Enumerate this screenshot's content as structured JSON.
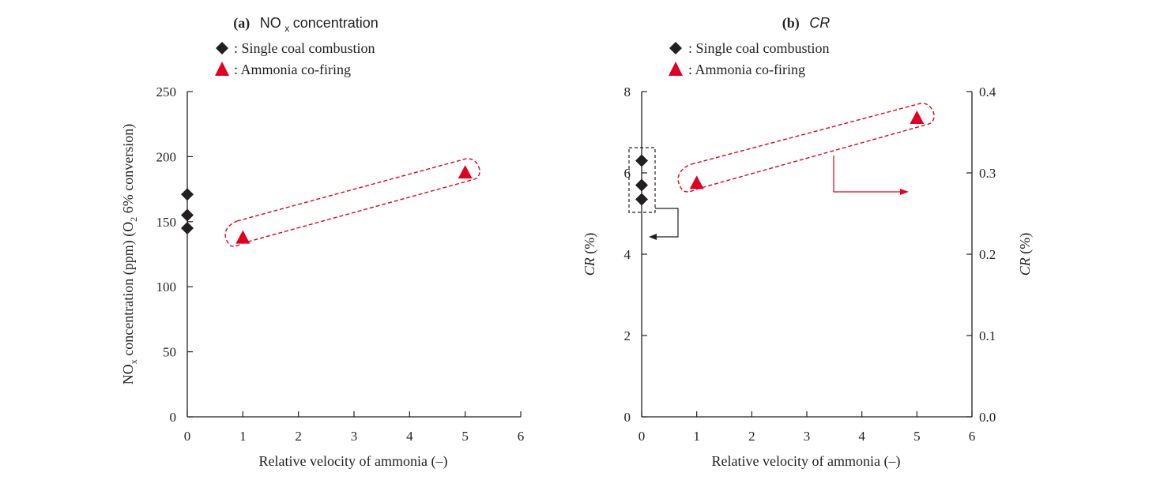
{
  "chart_data": [
    {
      "type": "scatter",
      "panel_label": "(a)",
      "title_main": "NO",
      "title_sub": "x",
      "title_rest": " concentration",
      "xlabel": "Relative velocity of ammonia  (–)",
      "ylabel_parts": [
        "NO",
        "x",
        " concentration  (ppm) (O",
        "2",
        " 6% conversion)"
      ],
      "xlim": [
        0,
        6
      ],
      "ylim": [
        0,
        250
      ],
      "xticks": [
        0,
        1,
        2,
        3,
        4,
        5,
        6
      ],
      "yticks": [
        0,
        50,
        100,
        150,
        200,
        250
      ],
      "series": [
        {
          "name": "Single coal combustion",
          "legend_text": ": Single coal combustion",
          "marker": "diamond",
          "color": "#231f20",
          "points": [
            [
              0,
              171
            ],
            [
              0,
              155
            ],
            [
              0,
              145
            ]
          ]
        },
        {
          "name": "Ammonia co-firing",
          "legend_text": ": Ammonia co-firing",
          "marker": "triangle",
          "color": "#e1001f",
          "points": [
            [
              1,
              138
            ],
            [
              5,
              188
            ]
          ]
        }
      ],
      "grid": false
    },
    {
      "type": "scatter",
      "panel_label": "(b)",
      "title_main": "CR",
      "xlabel": "Relative velocity of ammonia  (–)",
      "ylabel_left": "CR  (%)",
      "ylabel_left_italic": "CR",
      "ylabel_left_rest": "  (%)",
      "ylabel_right": "CR  (%)",
      "xlim": [
        0,
        6
      ],
      "ylim_left": [
        0,
        8
      ],
      "ylim_right": [
        0,
        0.4
      ],
      "xticks": [
        0,
        1,
        2,
        3,
        4,
        5,
        6
      ],
      "yticks_left": [
        0,
        2,
        4,
        6,
        8
      ],
      "yticks_right": [
        "0.0",
        "0.1",
        "0.2",
        "0.3",
        "0.4"
      ],
      "series": [
        {
          "name": "Single coal combustion",
          "legend_text": ": Single coal combustion",
          "marker": "diamond",
          "color": "#231f20",
          "axis": "left",
          "points": [
            [
              0,
              6.3
            ],
            [
              0,
              5.7
            ],
            [
              0,
              5.35
            ]
          ]
        },
        {
          "name": "Ammonia co-firing",
          "legend_text": ": Ammonia co-firing",
          "marker": "triangle",
          "color": "#e1001f",
          "axis": "right",
          "points": [
            [
              1,
              0.288
            ],
            [
              5,
              0.368
            ]
          ]
        }
      ],
      "grid": false
    }
  ],
  "colors": {
    "axis": "#231f20",
    "red": "#e1001f"
  }
}
